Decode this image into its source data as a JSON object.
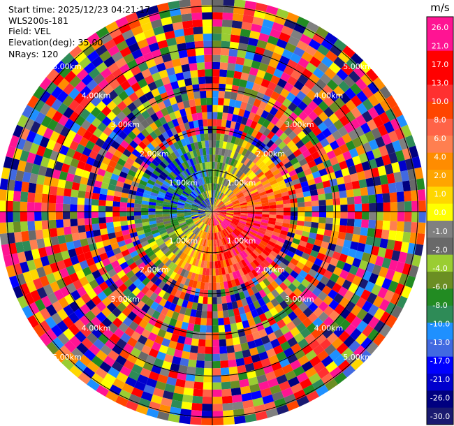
{
  "header": {
    "start_time": "Start time: 2025/12/23 04:21:17",
    "instrument": "WLS200s-181",
    "field": "Field: VEL",
    "elevation": "Elevation(deg): 35.00",
    "nrays": "NRays: 120"
  },
  "colorbar": {
    "unit": "m/s",
    "ticks": [
      "26.0",
      "21.0",
      "17.0",
      "13.0",
      "10.0",
      "8.0",
      "6.0",
      "4.0",
      "2.0",
      "1.0",
      "0.0",
      "-1.0",
      "-2.0",
      "-4.0",
      "-6.0",
      "-8.0",
      "-10.0",
      "-13.0",
      "-17.0",
      "-21.0",
      "-26.0",
      "-30.0"
    ],
    "colors": [
      "#ff1493",
      "#ff1493",
      "#ff0000",
      "#ff0000",
      "#ff3030",
      "#ff4500",
      "#ff6347",
      "#ff7f50",
      "#ff8c00",
      "#ffa500",
      "#ffd700",
      "#ffff00",
      "#808080",
      "#696969",
      "#9acd32",
      "#6b8e23",
      "#228b22",
      "#2e8b57",
      "#1e90ff",
      "#4169e1",
      "#0000ff",
      "#0000cd",
      "#000080",
      "#191970"
    ]
  },
  "chart_data": {
    "type": "ppi",
    "field": "VEL",
    "units": "m/s",
    "nrays": 120,
    "elevation_deg": 35.0,
    "range_rings_km": [
      1,
      2,
      3,
      4,
      5
    ],
    "ring_labels": [
      "1.00km",
      "2.00km",
      "3.00km",
      "4.00km",
      "5.00km"
    ],
    "max_range_km": 5.2,
    "vmin": -30.0,
    "vmax": 26.0
  }
}
